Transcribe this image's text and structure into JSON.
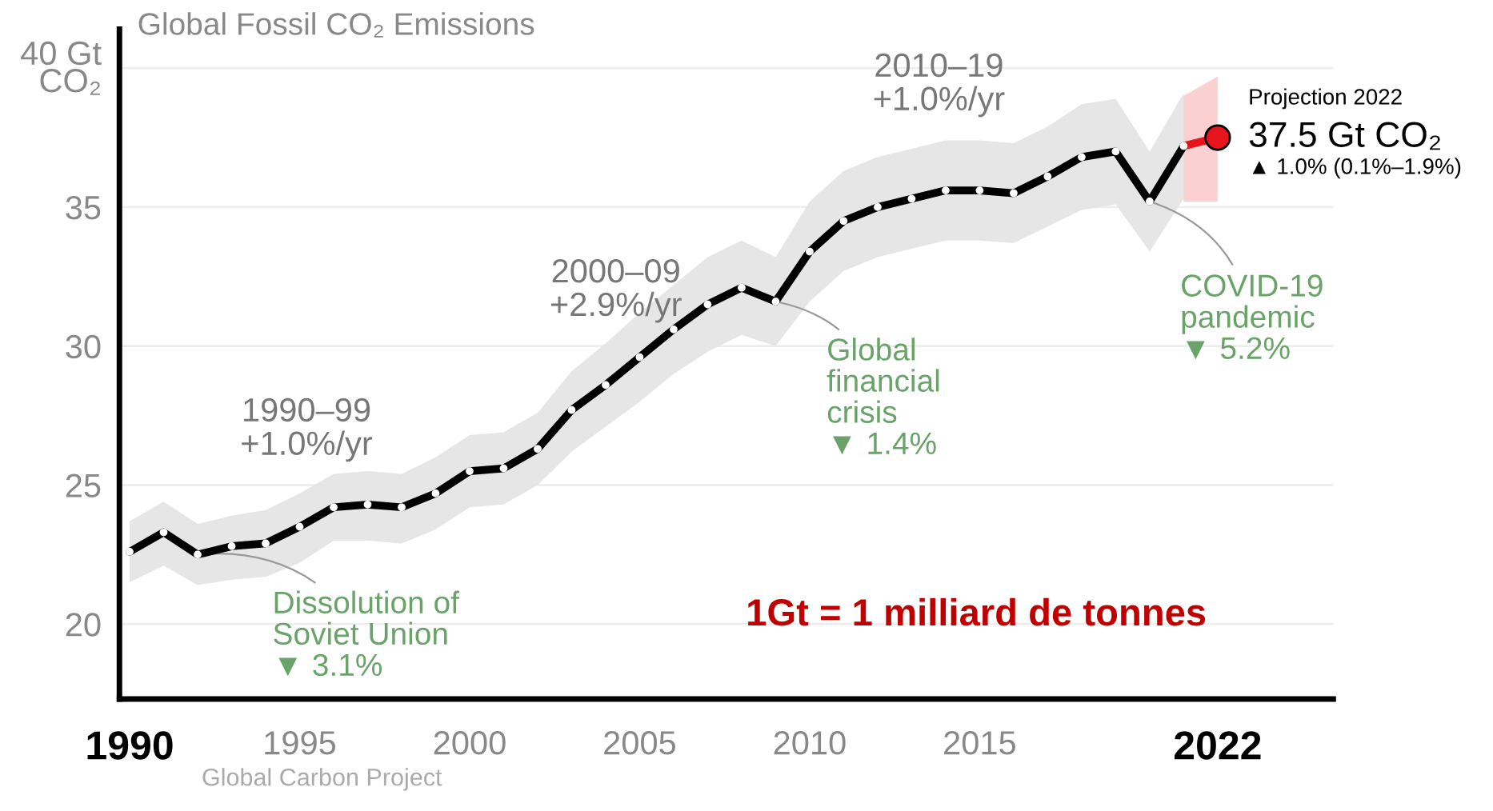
{
  "chart_data": {
    "type": "line",
    "title": "Global Fossil CO₂ Emissions",
    "x": [
      1990,
      1991,
      1992,
      1993,
      1994,
      1995,
      1996,
      1997,
      1998,
      1999,
      2000,
      2001,
      2002,
      2003,
      2004,
      2005,
      2006,
      2007,
      2008,
      2009,
      2010,
      2011,
      2012,
      2013,
      2014,
      2015,
      2016,
      2017,
      2018,
      2019,
      2020,
      2021
    ],
    "series": [
      {
        "color": "#000000",
        "values": [
          22.6,
          23.3,
          22.5,
          22.8,
          22.9,
          23.5,
          24.2,
          24.3,
          24.2,
          24.7,
          25.5,
          25.6,
          26.3,
          27.7,
          28.6,
          29.6,
          30.6,
          31.5,
          32.1,
          31.6,
          33.4,
          34.5,
          35.0,
          35.3,
          35.6,
          35.6,
          35.5,
          36.1,
          36.8,
          37.0,
          35.2,
          37.2
        ],
        "lower": [
          21.5,
          22.1,
          21.4,
          21.6,
          21.7,
          22.2,
          23.0,
          23.0,
          22.9,
          23.4,
          24.2,
          24.3,
          25.0,
          26.2,
          27.1,
          28.0,
          29.0,
          29.8,
          30.4,
          30.0,
          31.6,
          32.7,
          33.2,
          33.5,
          33.8,
          33.8,
          33.7,
          34.3,
          34.9,
          35.1,
          33.4,
          35.3
        ],
        "upper": [
          23.7,
          24.4,
          23.6,
          23.9,
          24.1,
          24.7,
          25.4,
          25.5,
          25.4,
          26.0,
          26.8,
          26.9,
          27.6,
          29.1,
          30.1,
          31.2,
          32.2,
          33.2,
          33.8,
          33.2,
          35.2,
          36.3,
          36.8,
          37.1,
          37.4,
          37.4,
          37.3,
          37.9,
          38.7,
          38.9,
          37.0,
          39.1
        ]
      },
      {
        "color": "#e8141b",
        "x": [
          2021,
          2022
        ],
        "values": [
          37.2,
          37.5
        ],
        "lower": [
          35.2,
          35.2
        ],
        "upper": [
          39.0,
          39.7
        ]
      }
    ],
    "xlim": [
      1989.7,
      2025.4
    ],
    "xticks": [
      1990,
      1995,
      2000,
      2005,
      2010,
      2015,
      2022
    ],
    "ylim": [
      17.3,
      41.4
    ],
    "yticks": [
      20,
      25,
      30,
      35,
      {
        "value": 40,
        "label": "40 Gt\nCO₂"
      }
    ],
    "grid": "y",
    "marker": "circle",
    "line_style": "solid",
    "annotations": [
      "1990–99\n+1.0%/yr",
      "2000–09\n+2.9%/yr",
      "2010–19\n+1.0%/yr",
      {
        "text": "Dissolution of\nSoviet Union\n▼ 3.1%",
        "x": 1992,
        "y": 22.5
      },
      {
        "text": "Global\nfinancial\ncrisis\n▼ 1.4%",
        "x": 2009,
        "y": 31.6
      },
      {
        "text": "COVID-19\npandemic\n▼ 5.2%",
        "x": 2020,
        "y": 35.2
      },
      {
        "text": "Projection 2022\n37.5 Gt CO₂\n▲ 1.0% (0.1%–1.9%)",
        "x": 2022,
        "y": 37.5
      },
      "1Gt = 1 milliard de tonnes",
      "Global Carbon Project"
    ]
  }
}
